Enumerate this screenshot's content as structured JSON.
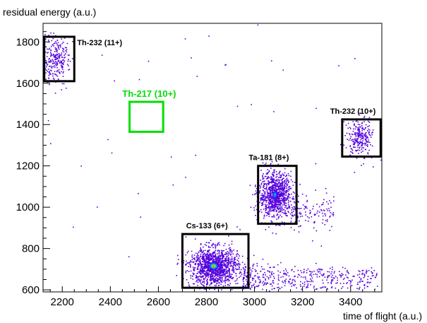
{
  "chart_data": {
    "type": "heatmap",
    "title": "",
    "xlabel": "time of flight (a.u.)",
    "ylabel": "residual energy (a.u.)",
    "xlim": [
      2120,
      3530
    ],
    "ylim": [
      590,
      1890
    ],
    "x_ticks": [
      2200,
      2400,
      2600,
      2800,
      3000,
      3200,
      3400
    ],
    "x_tick_labels": [
      "2200",
      "2400",
      "2600",
      "2800",
      "3000",
      "3200",
      "3400"
    ],
    "y_ticks": [
      600,
      800,
      1000,
      1200,
      1400,
      1600,
      1800
    ],
    "y_tick_labels": [
      "600",
      "800",
      "1000",
      "1200",
      "1400",
      "1600",
      "1800"
    ],
    "grid": false,
    "colors": {
      "point": "#5500dd",
      "box": "#000000",
      "highlight_box": "#00e000",
      "heat_core": [
        "#ff2000",
        "#ffee00",
        "#22dd55",
        "#00aaff",
        "#2222ee"
      ]
    },
    "regions": [
      {
        "label": "Th-232 (11+)",
        "x0": 2125,
        "x1": 2250,
        "y0": 1610,
        "y1": 1825,
        "highlight": false
      },
      {
        "label": "Th-217 (10+)",
        "x0": 2480,
        "x1": 2620,
        "y0": 1365,
        "y1": 1510,
        "highlight": true
      },
      {
        "label": "Th-232 (10+)",
        "x0": 3365,
        "x1": 3525,
        "y0": 1245,
        "y1": 1425,
        "highlight": false
      },
      {
        "label": "Ta-181 (8+)",
        "x0": 3015,
        "x1": 3175,
        "y0": 920,
        "y1": 1200,
        "highlight": false
      },
      {
        "label": "Cs-133 (6+)",
        "x0": 2700,
        "x1": 2975,
        "y0": 610,
        "y1": 870,
        "highlight": false
      }
    ],
    "clusters": [
      {
        "x": 2170,
        "y": 1715,
        "sx": 30,
        "sy": 55,
        "weight": "medium"
      },
      {
        "x": 3435,
        "y": 1340,
        "sx": 25,
        "sy": 45,
        "weight": "medium"
      },
      {
        "x": 3085,
        "y": 1060,
        "sx": 35,
        "sy": 55,
        "weight": "high"
      },
      {
        "x": 2830,
        "y": 715,
        "sx": 50,
        "sy": 45,
        "weight": "peak"
      }
    ]
  }
}
